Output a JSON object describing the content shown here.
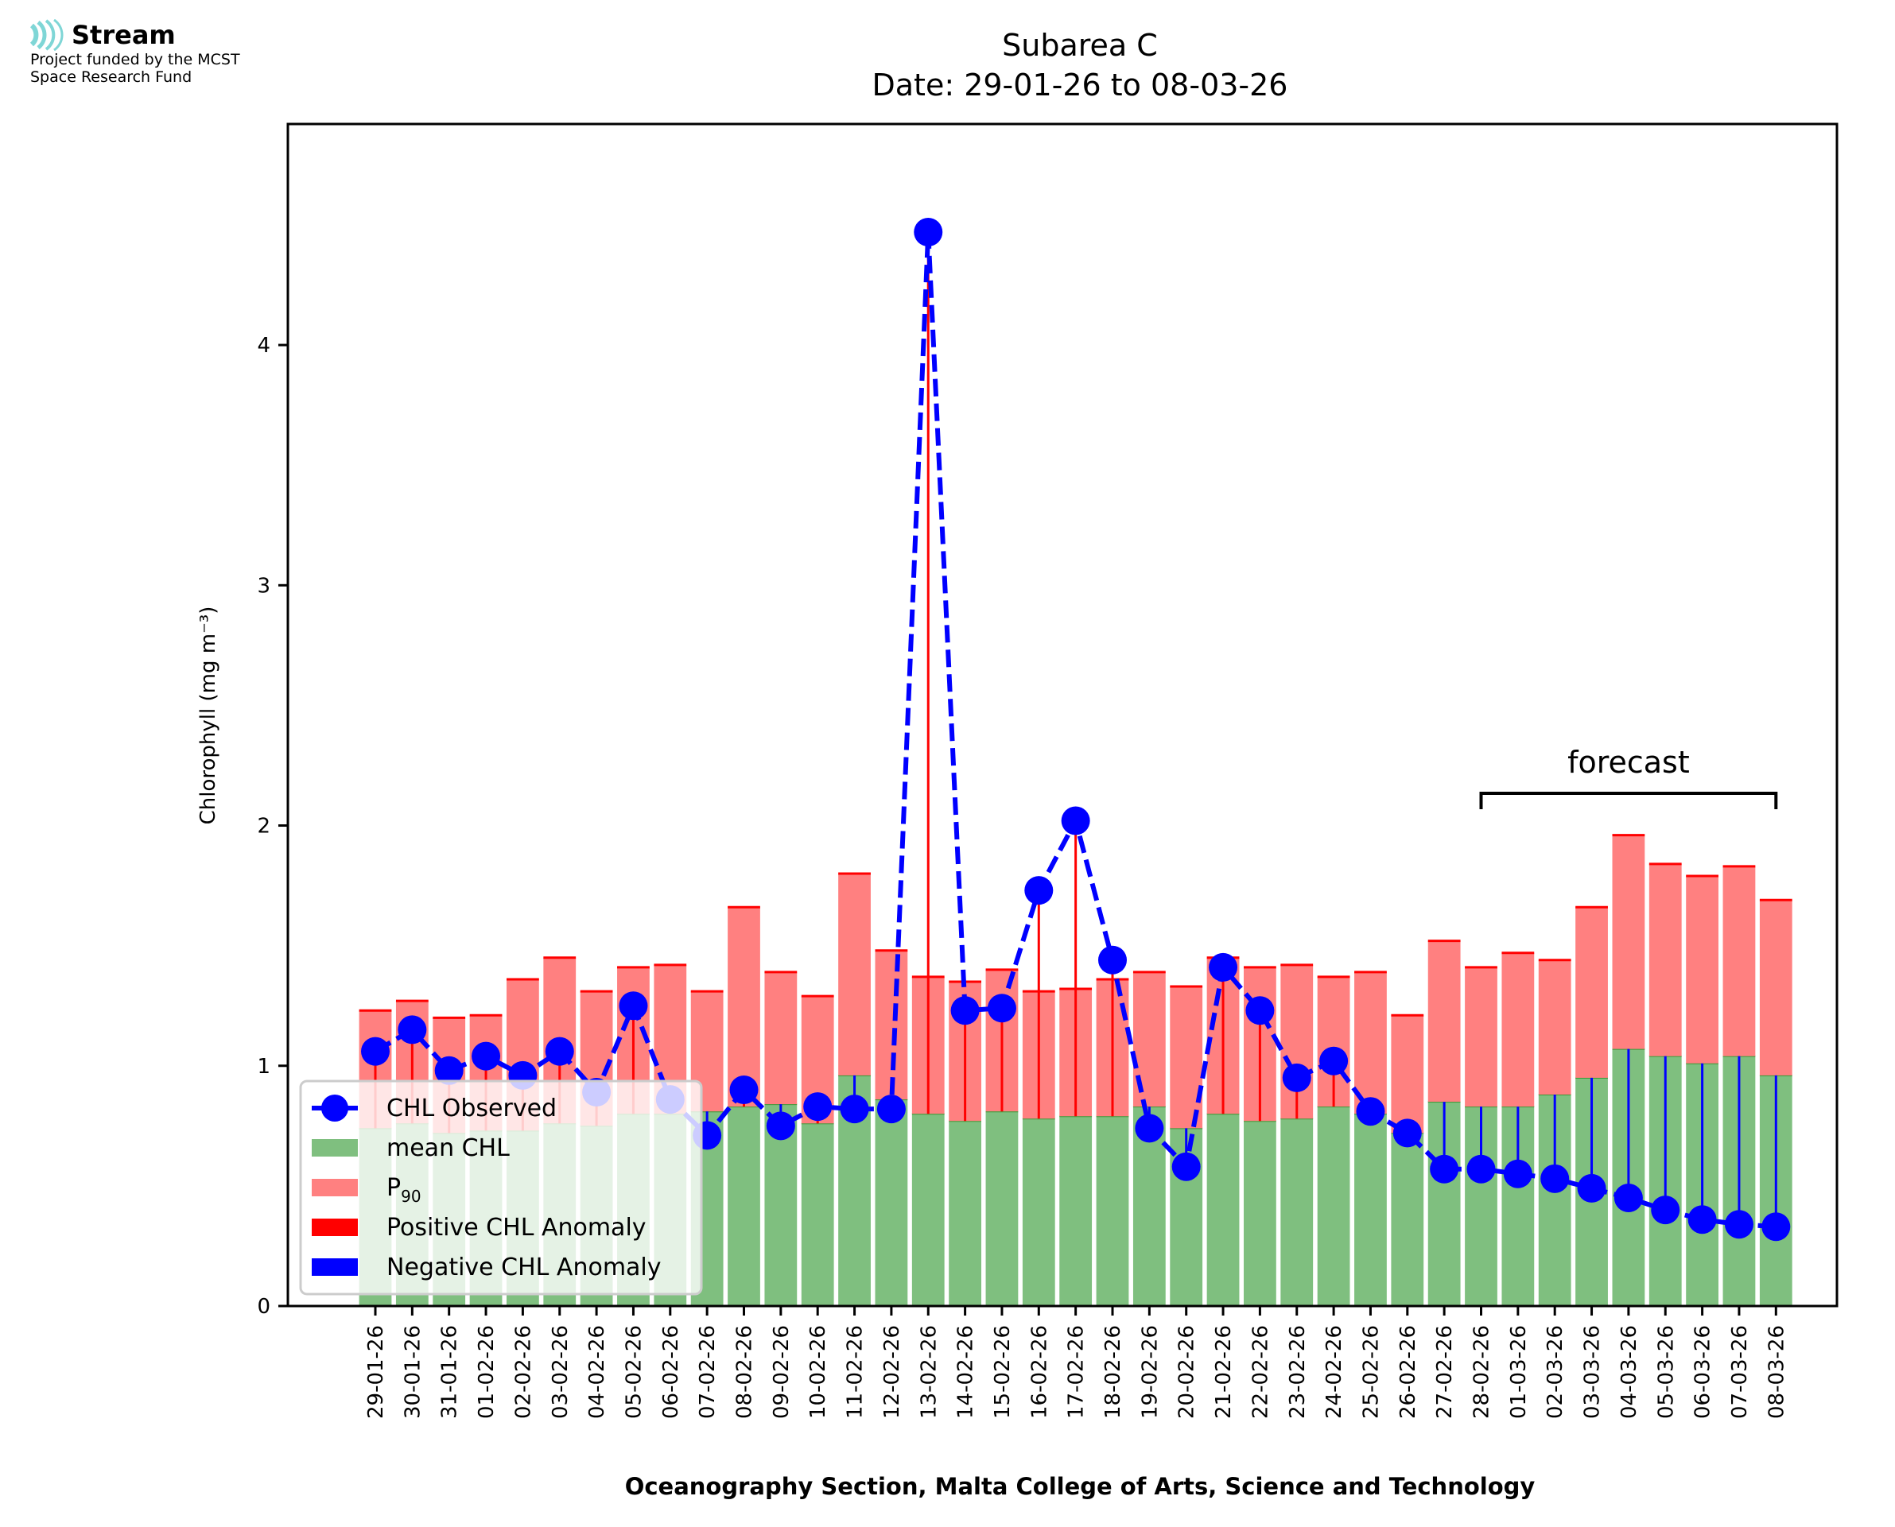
{
  "logo": {
    "brand": "Stream",
    "line1": "Project funded by the MCST",
    "line2": "Space Research Fund",
    "accent": "#7fd6d6"
  },
  "chart_data": {
    "type": "bar",
    "title_line1": "Subarea C",
    "title_line2": "Date: 29-01-26 to 08-03-26",
    "xlabel": "Oceanography Section, Malta College of Arts, Science and Technology",
    "ylabel": "Chlorophyll (mg m⁻³)",
    "ylim": [
      0,
      4.92
    ],
    "yticks": [
      0,
      1,
      2,
      3,
      4
    ],
    "grid": false,
    "legend_position": "lower-left",
    "categories": [
      "29-01-26",
      "30-01-26",
      "31-01-26",
      "01-02-26",
      "02-02-26",
      "03-02-26",
      "04-02-26",
      "05-02-26",
      "06-02-26",
      "07-02-26",
      "08-02-26",
      "09-02-26",
      "10-02-26",
      "11-02-26",
      "12-02-26",
      "13-02-26",
      "14-02-26",
      "15-02-26",
      "16-02-26",
      "17-02-26",
      "18-02-26",
      "19-02-26",
      "20-02-26",
      "21-02-26",
      "22-02-26",
      "23-02-26",
      "24-02-26",
      "25-02-26",
      "26-02-26",
      "27-02-26",
      "28-02-26",
      "01-03-26",
      "02-03-26",
      "03-03-26",
      "04-03-26",
      "05-03-26",
      "06-03-26",
      "07-03-26",
      "08-03-26"
    ],
    "series": [
      {
        "name": "mean CHL",
        "kind": "bar",
        "color": "#7fbf7f",
        "values": [
          0.74,
          0.76,
          0.72,
          0.73,
          0.73,
          0.76,
          0.75,
          0.8,
          0.8,
          0.81,
          0.83,
          0.84,
          0.76,
          0.96,
          0.86,
          0.8,
          0.77,
          0.81,
          0.78,
          0.79,
          0.79,
          0.83,
          0.74,
          0.8,
          0.77,
          0.78,
          0.83,
          0.8,
          0.72,
          0.85,
          0.83,
          0.83,
          0.88,
          0.95,
          1.07,
          1.04,
          1.01,
          1.04,
          0.96
        ]
      },
      {
        "name": "P90",
        "kind": "bar",
        "color": "#ff8080",
        "values": [
          1.23,
          1.27,
          1.2,
          1.21,
          1.36,
          1.45,
          1.31,
          1.41,
          1.42,
          1.31,
          1.66,
          1.39,
          1.29,
          1.8,
          1.48,
          1.37,
          1.35,
          1.4,
          1.31,
          1.32,
          1.36,
          1.39,
          1.33,
          1.45,
          1.41,
          1.42,
          1.37,
          1.39,
          1.21,
          1.52,
          1.41,
          1.47,
          1.44,
          1.66,
          1.96,
          1.84,
          1.79,
          1.83,
          1.69
        ]
      },
      {
        "name": "CHL Observed",
        "kind": "line",
        "color": "#0000ff",
        "values": [
          1.06,
          1.15,
          0.98,
          1.04,
          0.96,
          1.06,
          0.89,
          1.25,
          0.86,
          0.71,
          0.9,
          0.75,
          0.83,
          0.82,
          0.82,
          4.47,
          1.23,
          1.24,
          1.73,
          2.02,
          1.44,
          0.74,
          0.58,
          1.41,
          1.23,
          0.95,
          1.02,
          0.81,
          0.72,
          0.57,
          0.57,
          0.55,
          0.53,
          0.49,
          0.45,
          0.4,
          0.36,
          0.34,
          0.33
        ]
      }
    ],
    "legend": [
      {
        "label": "CHL Observed",
        "kind": "line-marker",
        "color": "#0000ff"
      },
      {
        "label": "mean CHL",
        "kind": "patch",
        "color": "#7fbf7f"
      },
      {
        "label": "P",
        "sub": "90",
        "kind": "patch",
        "color": "#ff8080"
      },
      {
        "label": "Positive CHL Anomaly",
        "kind": "patch",
        "color": "#ff0000"
      },
      {
        "label": "Negative CHL Anomaly",
        "kind": "patch",
        "color": "#0000ff"
      }
    ],
    "annotation": {
      "text": "forecast",
      "from": "28-02-26",
      "to": "08-03-26"
    },
    "colors": {
      "positive_anomaly": "#ff0000",
      "negative_anomaly": "#0000ff",
      "p90_edge": "#ff0000",
      "mean_edge": "#008000"
    }
  }
}
